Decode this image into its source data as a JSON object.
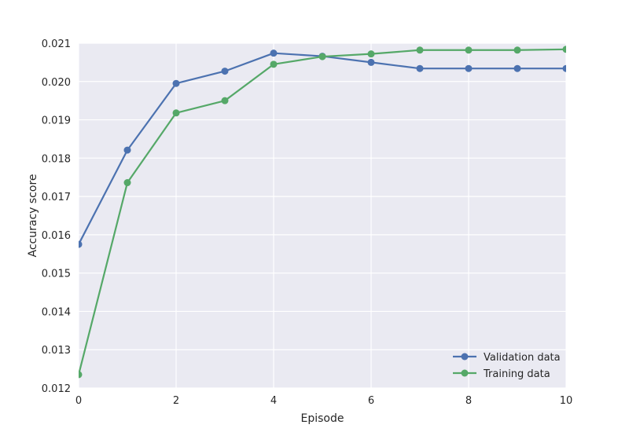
{
  "chart_data": {
    "type": "line",
    "title": "",
    "xlabel": "Episode",
    "ylabel": "Accuracy score",
    "xlim": [
      0,
      10
    ],
    "ylim": [
      0.012,
      0.021
    ],
    "x_ticks": [
      "0",
      "2",
      "4",
      "6",
      "8",
      "10"
    ],
    "y_ticks": [
      "0.012",
      "0.013",
      "0.014",
      "0.015",
      "0.016",
      "0.017",
      "0.018",
      "0.019",
      "0.020",
      "0.021"
    ],
    "grid": true,
    "legend_position": "bottom-right",
    "x": [
      0,
      1,
      2,
      3,
      4,
      5,
      6,
      7,
      8,
      9,
      10
    ],
    "series": [
      {
        "name": "Validation data",
        "color": "#4c72b0",
        "values": [
          0.01575,
          0.01821,
          0.01995,
          0.02027,
          0.02074,
          0.02066,
          0.0205,
          0.02034,
          0.02034,
          0.02034,
          0.02034
        ]
      },
      {
        "name": "Training data",
        "color": "#55a868",
        "values": [
          0.01235,
          0.01736,
          0.01918,
          0.0195,
          0.02045,
          0.02065,
          0.02072,
          0.02082,
          0.02082,
          0.02082,
          0.02084
        ]
      }
    ]
  }
}
